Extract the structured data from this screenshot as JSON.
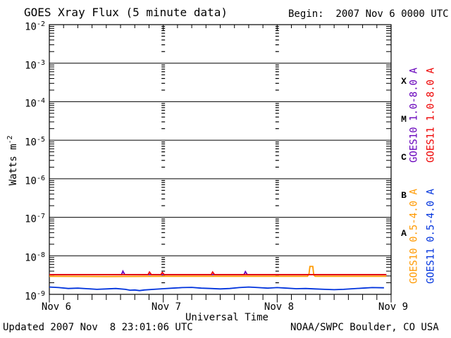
{
  "header": {
    "title": "GOES Xray Flux (5 minute data)",
    "begin_label": "Begin:  2007 Nov 6 0000 UTC"
  },
  "footer": {
    "updated": "Updated 2007 Nov  8 23:01:06 UTC",
    "source": "NOAA/SWPC Boulder, CO USA"
  },
  "chart_data": {
    "type": "line",
    "title": "GOES Xray Flux (5 minute data)",
    "subtitle": "Begin:  2007 Nov 6 0000 UTC",
    "xlabel": "Universal Time",
    "ylabel_base": "Watts m",
    "ylabel_exp": "-2",
    "x_unit": "hours since 2007 Nov 6 0000 UTC",
    "x_range_hours": [
      0,
      72
    ],
    "ylog_range": [
      1e-09,
      0.01
    ],
    "grid": "solid horizontal line each decade; columns of short dashes at day boundaries; 3-hour ticks top and bottom; log minor ticks left and right",
    "legend_position": "right, rotated 90deg",
    "xticks": [
      {
        "hour": 0,
        "label": "Nov 6"
      },
      {
        "hour": 24,
        "label": "Nov 7"
      },
      {
        "hour": 48,
        "label": "Nov 8"
      },
      {
        "hour": 72,
        "label": "Nov 9"
      }
    ],
    "yticks": [
      {
        "base": "10",
        "exp": "-2"
      },
      {
        "base": "10",
        "exp": "-3"
      },
      {
        "base": "10",
        "exp": "-4"
      },
      {
        "base": "10",
        "exp": "-5"
      },
      {
        "base": "10",
        "exp": "-6"
      },
      {
        "base": "10",
        "exp": "-7"
      },
      {
        "base": "10",
        "exp": "-8"
      },
      {
        "base": "10",
        "exp": "-9"
      }
    ],
    "flux_classes": [
      {
        "label": "X",
        "band": [
          0.0001,
          0.001
        ]
      },
      {
        "label": "M",
        "band": [
          1e-05,
          0.0001
        ]
      },
      {
        "label": "C",
        "band": [
          1e-06,
          1e-05
        ]
      },
      {
        "label": "B",
        "band": [
          1e-07,
          1e-06
        ]
      },
      {
        "label": "A",
        "band": [
          1e-08,
          1e-07
        ]
      }
    ],
    "legend": {
      "items": [
        {
          "label": "GOES10 1.0-8.0 A",
          "color": "#6600bb"
        },
        {
          "label": "GOES11 1.0-8.0 A",
          "color": "#ee0000"
        },
        {
          "label": "GOES10 0.5-4.0 A",
          "color": "#ff9900"
        },
        {
          "label": "GOES11 0.5-4.0 A",
          "color": "#0033dd"
        }
      ]
    },
    "series": [
      {
        "name": "GOES10 1.0-8.0 A",
        "color": "#6600bb",
        "points": [
          [
            0,
            3.25e-09
          ],
          [
            15.2,
            3.25e-09
          ],
          [
            15.5,
            4e-09
          ],
          [
            15.9,
            3.25e-09
          ],
          [
            41.0,
            3.25e-09
          ],
          [
            41.3,
            3.9e-09
          ],
          [
            41.7,
            3.25e-09
          ],
          [
            71,
            3.25e-09
          ]
        ]
      },
      {
        "name": "GOES10 0.5-4.0 A",
        "color": "#ff9900",
        "points": [
          [
            0,
            2.95e-09
          ],
          [
            12,
            2.9e-09
          ],
          [
            24,
            2.95e-09
          ],
          [
            36,
            2.95e-09
          ],
          [
            48,
            2.95e-09
          ],
          [
            54.4,
            2.95e-09
          ],
          [
            54.7,
            3.4e-09
          ],
          [
            54.9,
            5.3e-09
          ],
          [
            55.5,
            5.3e-09
          ],
          [
            55.7,
            3.2e-09
          ],
          [
            56,
            2.95e-09
          ],
          [
            64,
            2.95e-09
          ],
          [
            71,
            2.95e-09
          ]
        ]
      },
      {
        "name": "GOES11 1.0-8.0 A",
        "color": "#ee0000",
        "points": [
          [
            0,
            3.25e-09
          ],
          [
            20.8,
            3.25e-09
          ],
          [
            21.1,
            3.8e-09
          ],
          [
            21.5,
            3.25e-09
          ],
          [
            23.5,
            3.25e-09
          ],
          [
            23.8,
            3.7e-09
          ],
          [
            24.2,
            3.25e-09
          ],
          [
            34.1,
            3.25e-09
          ],
          [
            34.4,
            3.8e-09
          ],
          [
            34.8,
            3.25e-09
          ],
          [
            71,
            3.25e-09
          ]
        ]
      },
      {
        "name": "GOES11 0.5-4.0 A",
        "color": "#0033dd",
        "points": [
          [
            0,
            1.55e-09
          ],
          [
            2,
            1.5e-09
          ],
          [
            4,
            1.42e-09
          ],
          [
            6,
            1.45e-09
          ],
          [
            8,
            1.4e-09
          ],
          [
            10,
            1.35e-09
          ],
          [
            12,
            1.38e-09
          ],
          [
            14,
            1.42e-09
          ],
          [
            16,
            1.35e-09
          ],
          [
            17,
            1.28e-09
          ],
          [
            18,
            1.3e-09
          ],
          [
            19,
            1.25e-09
          ],
          [
            20,
            1.3e-09
          ],
          [
            22,
            1.35e-09
          ],
          [
            24,
            1.4e-09
          ],
          [
            26,
            1.45e-09
          ],
          [
            28,
            1.5e-09
          ],
          [
            30,
            1.52e-09
          ],
          [
            32,
            1.45e-09
          ],
          [
            34,
            1.42e-09
          ],
          [
            36,
            1.38e-09
          ],
          [
            38,
            1.42e-09
          ],
          [
            40,
            1.5e-09
          ],
          [
            42,
            1.55e-09
          ],
          [
            44,
            1.5e-09
          ],
          [
            46,
            1.45e-09
          ],
          [
            48,
            1.5e-09
          ],
          [
            50,
            1.45e-09
          ],
          [
            52,
            1.4e-09
          ],
          [
            54,
            1.42e-09
          ],
          [
            56,
            1.38e-09
          ],
          [
            58,
            1.35e-09
          ],
          [
            60,
            1.32e-09
          ],
          [
            62,
            1.35e-09
          ],
          [
            64,
            1.4e-09
          ],
          [
            66,
            1.45e-09
          ],
          [
            68,
            1.5e-09
          ],
          [
            70.5,
            1.48e-09
          ]
        ]
      }
    ]
  }
}
